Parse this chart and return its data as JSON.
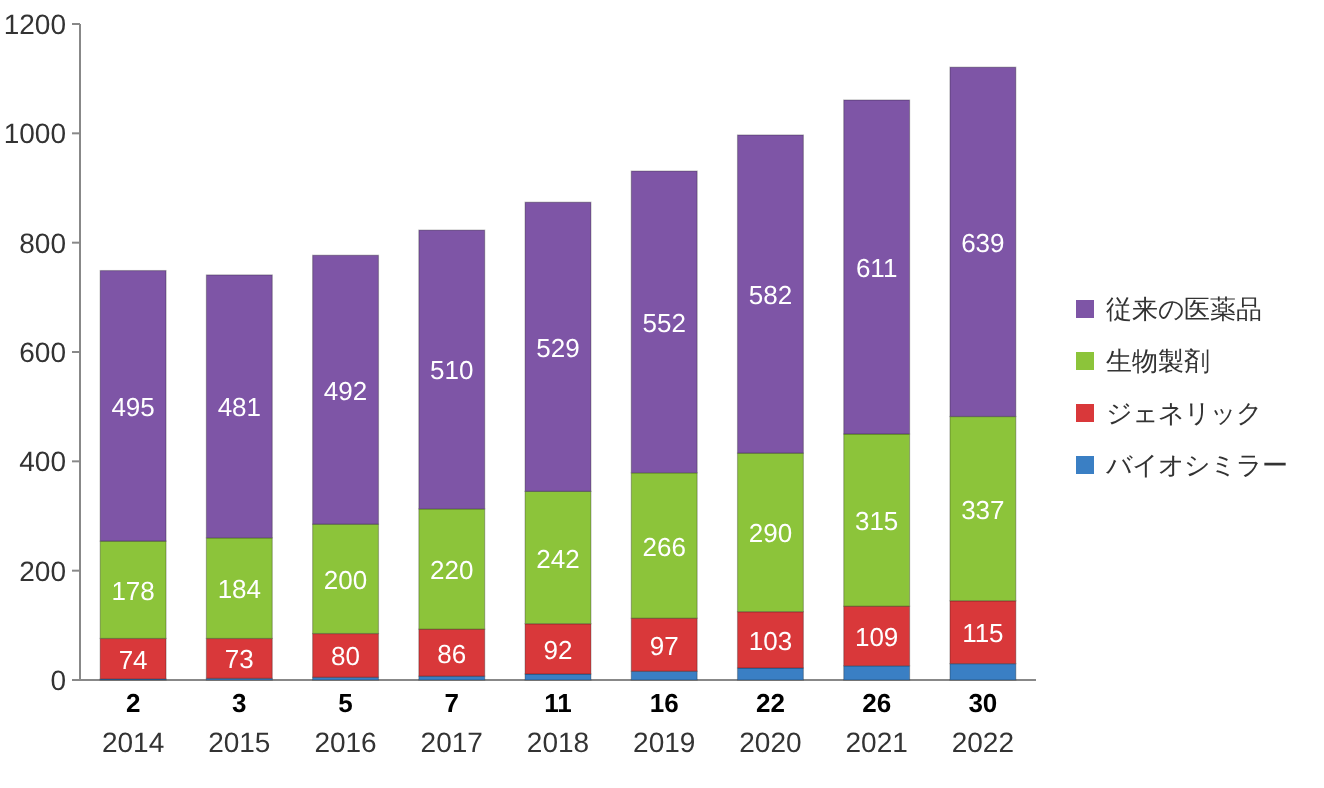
{
  "chart_data": {
    "type": "bar",
    "stacked": true,
    "categories": [
      "2014",
      "2015",
      "2016",
      "2017",
      "2018",
      "2019",
      "2020",
      "2021",
      "2022"
    ],
    "series": [
      {
        "name": "バイオシミラー",
        "color": "#3a7fc4",
        "values": [
          2,
          3,
          5,
          7,
          11,
          16,
          22,
          26,
          30
        ]
      },
      {
        "name": "ジェネリック",
        "color": "#d9383a",
        "values": [
          74,
          73,
          80,
          86,
          92,
          97,
          103,
          109,
          115
        ]
      },
      {
        "name": "生物製剤",
        "color": "#8cc43a",
        "values": [
          178,
          184,
          200,
          220,
          242,
          266,
          290,
          315,
          337
        ]
      },
      {
        "name": "従来の医薬品",
        "color": "#7e55a6",
        "values": [
          495,
          481,
          492,
          510,
          529,
          552,
          582,
          611,
          639
        ]
      }
    ],
    "ylim": [
      0,
      1200
    ],
    "yticks": [
      0,
      200,
      400,
      600,
      800,
      1000,
      1200
    ],
    "data_labels": true,
    "legend": "right"
  }
}
